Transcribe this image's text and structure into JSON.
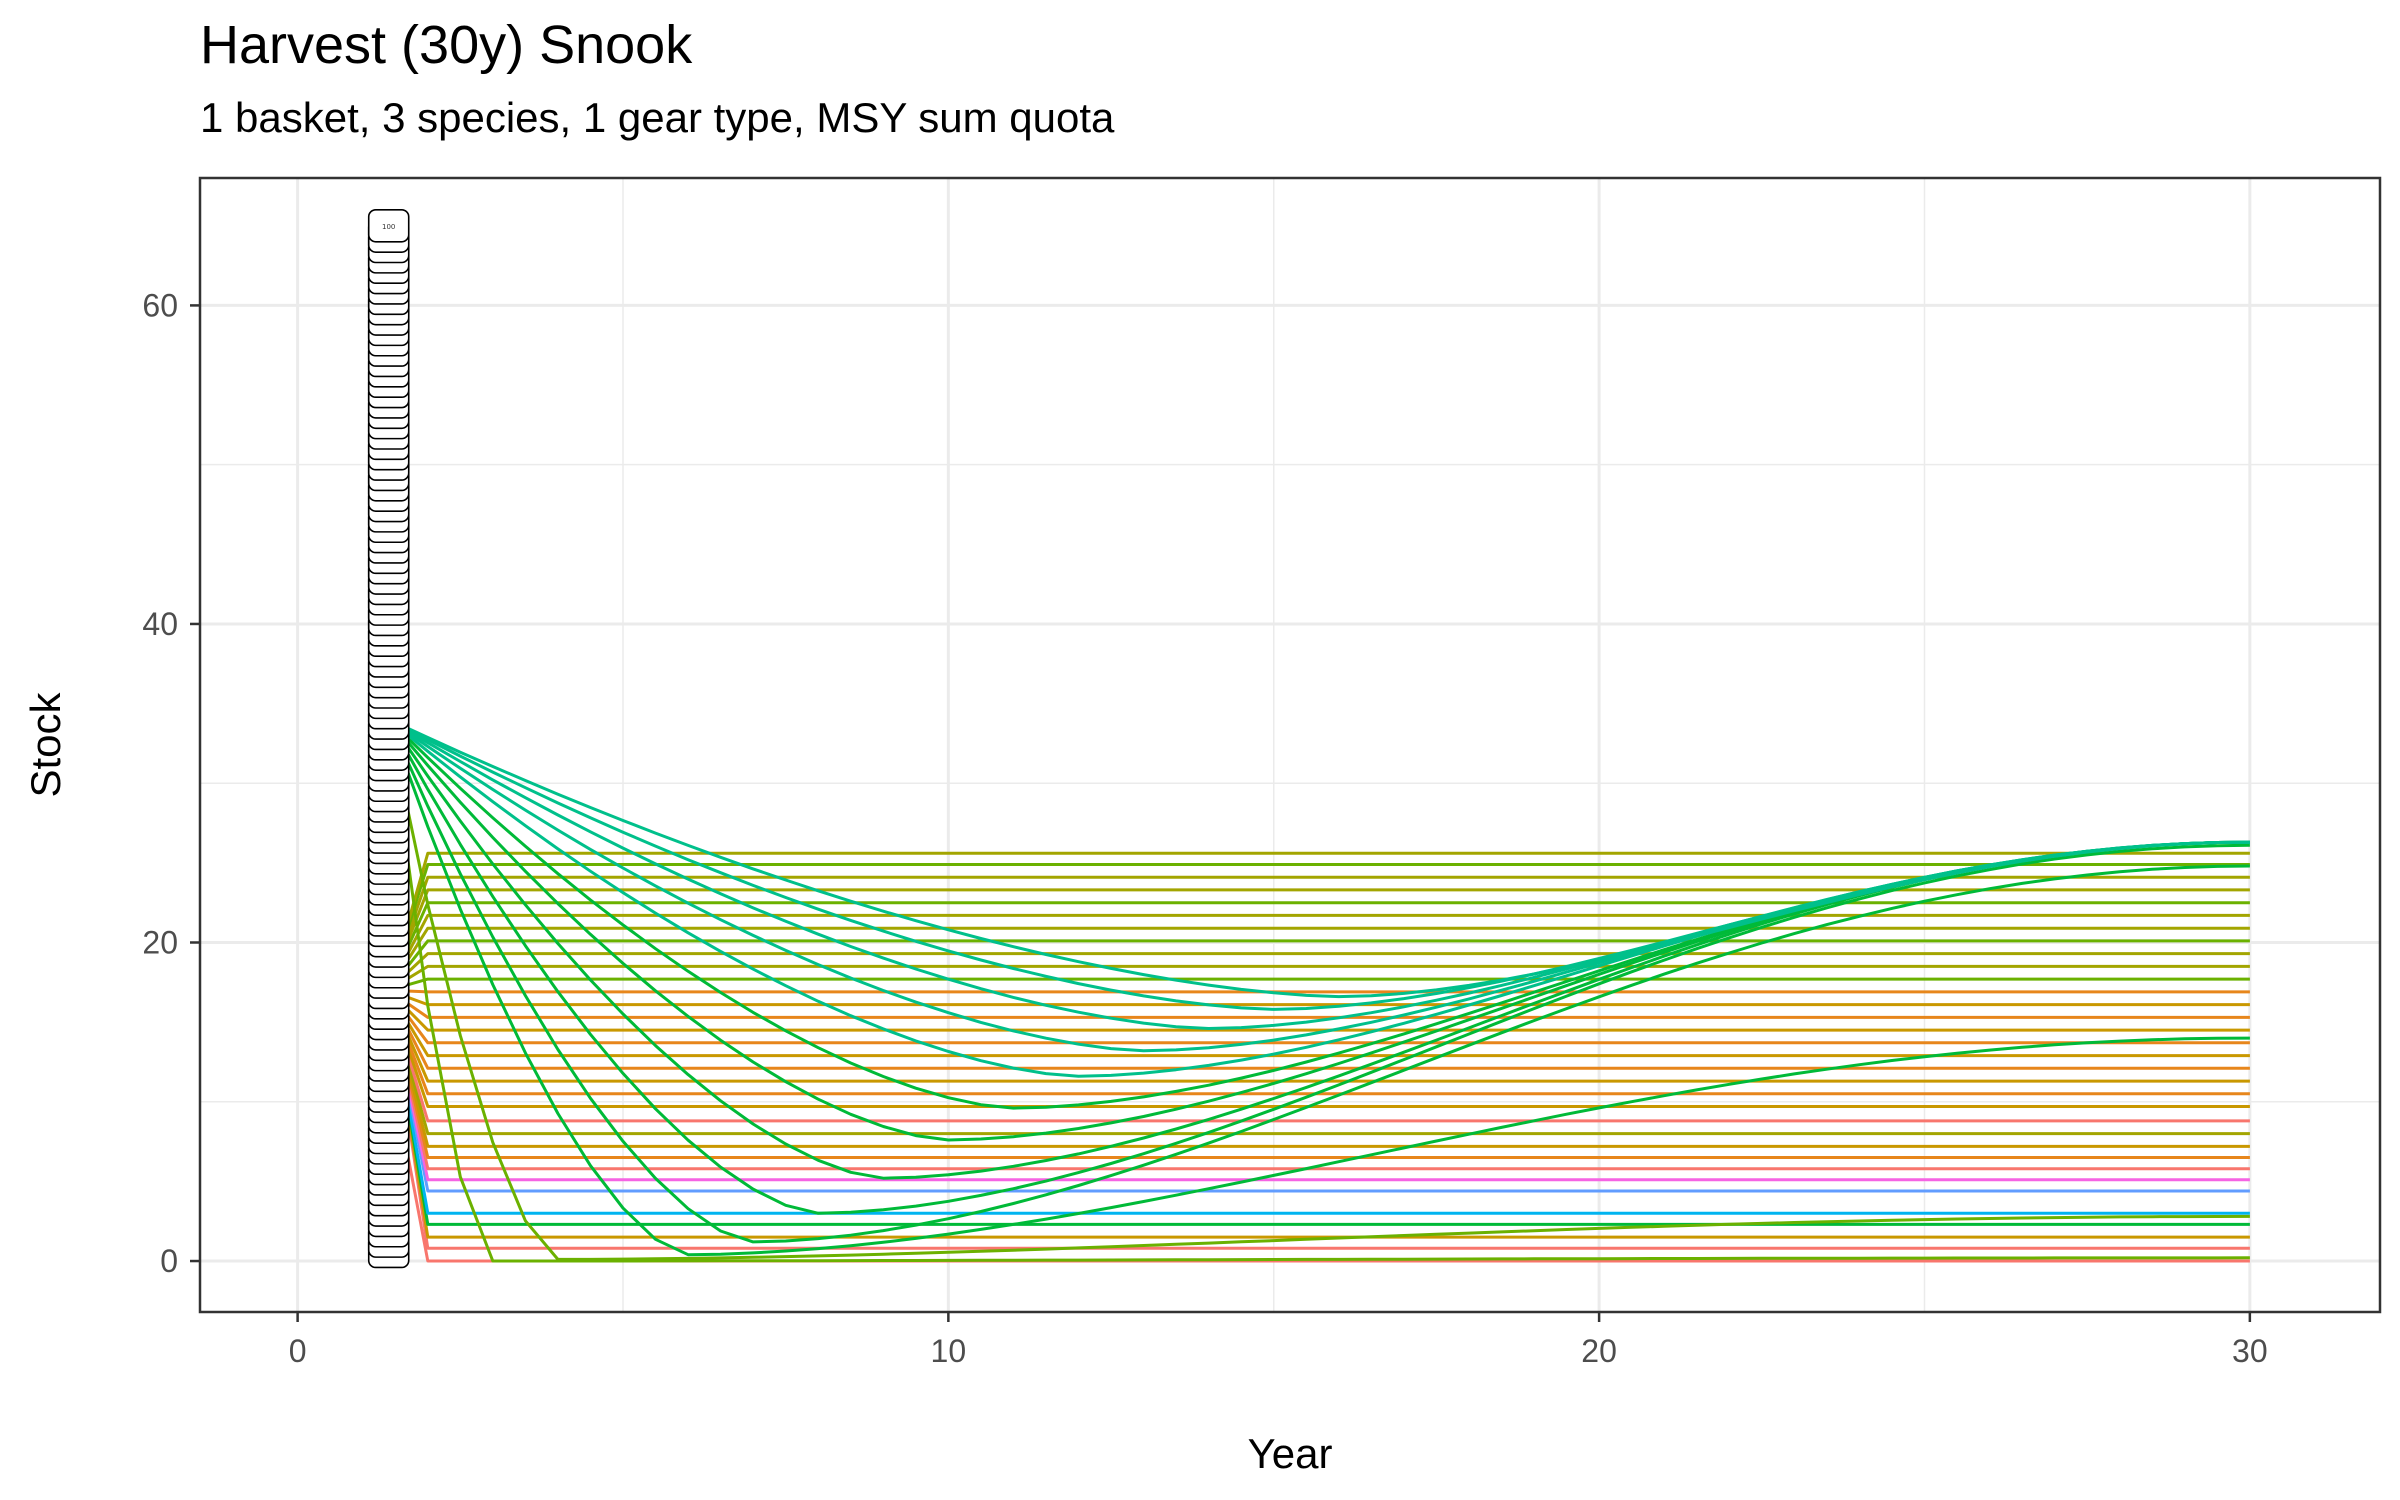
{
  "chart_data": {
    "type": "line",
    "title": "Harvest (30y) Snook",
    "subtitle": "1 basket, 3 species, 1 gear type, MSY sum quota",
    "xlabel": "Year",
    "ylabel": "Stock",
    "xlim": [
      -1.5,
      32.0
    ],
    "ylim": [
      -3.2,
      68.0
    ],
    "x_ticks": [
      0,
      10,
      20,
      30
    ],
    "x_tick_labels": [
      "0",
      "10",
      "20",
      "30"
    ],
    "y_ticks": [
      0,
      20,
      40,
      60
    ],
    "y_tick_labels": [
      "0",
      "20",
      "40",
      "60"
    ],
    "grid": true,
    "legend": "none",
    "frame_color": "#333333",
    "grid_color": "#ebebeb",
    "series_colors": [
      "#F8766D",
      "#E7861B",
      "#C99800",
      "#A3A500",
      "#6BB100",
      "#00BA38",
      "#00C08B",
      "#00BFC4",
      "#00B4F0",
      "#619CFF",
      "#B983FF",
      "#F564E3",
      "#FF67A4"
    ],
    "start_labels": {
      "x": 1.4,
      "y_min": 0.6,
      "y_max": 65.0,
      "count": 100,
      "top_label": "100"
    },
    "series_groups": [
      {
        "kind": "steady",
        "levels": [
          0.8,
          1.5,
          2.3,
          3.0,
          4.4,
          5.1,
          5.8,
          6.5,
          7.2,
          8.0,
          8.8,
          9.7,
          10.5,
          11.3,
          12.1,
          12.9,
          13.7,
          14.5,
          15.3,
          16.1,
          16.9,
          17.7,
          18.5,
          19.3,
          20.1,
          20.9,
          21.7,
          22.5,
          23.3,
          24.1,
          24.9,
          25.6
        ],
        "start_y": 17.0
      },
      {
        "kind": "collapse",
        "levels": [
          0.0
        ],
        "start_y": 13.0,
        "end_x": 2
      },
      {
        "kind": "recovery",
        "start_y": 34.0,
        "min_points": [
          {
            "year": 3,
            "min": 0.0,
            "end": 0.2
          },
          {
            "year": 4,
            "min": 0.1,
            "end": 2.8
          },
          {
            "year": 6,
            "min": 0.4,
            "end": 14.0
          },
          {
            "year": 7,
            "min": 1.2,
            "end": 24.8
          },
          {
            "year": 8,
            "min": 3.0,
            "end": 26.1
          },
          {
            "year": 9,
            "min": 5.2,
            "end": 26.3
          },
          {
            "year": 10,
            "min": 7.6,
            "end": 26.3
          },
          {
            "year": 11,
            "min": 9.6,
            "end": 26.3
          },
          {
            "year": 12,
            "min": 11.6,
            "end": 26.3
          },
          {
            "year": 13,
            "min": 13.2,
            "end": 26.3
          },
          {
            "year": 14,
            "min": 14.6,
            "end": 26.3
          },
          {
            "year": 15,
            "min": 15.8,
            "end": 26.3
          },
          {
            "year": 16,
            "min": 16.6,
            "end": 26.3
          }
        ]
      }
    ]
  }
}
